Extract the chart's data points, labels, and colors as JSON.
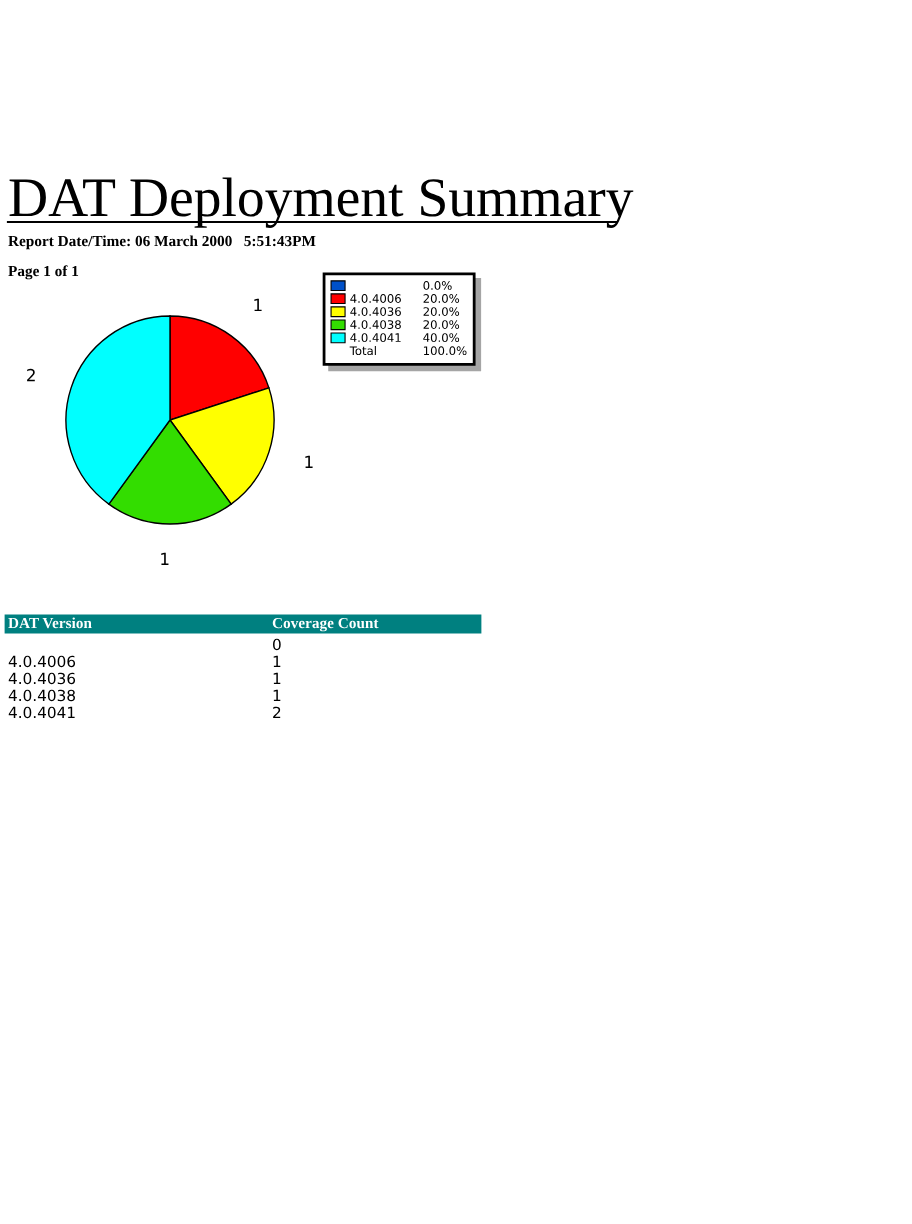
{
  "chart_data": {
    "type": "pie",
    "title": "DAT Deployment Summary",
    "subtitle": "Report Date/Time: 06 March 2000   5:51:43PM",
    "categories": [
      null,
      "4.0.4006",
      "4.0.4036",
      "4.0.4038",
      "4.0.4041"
    ],
    "values": [
      0,
      1,
      1,
      1,
      2
    ],
    "colors": [
      "#0050c8",
      "#ff0000",
      "#ffff00",
      "#33dd00",
      "#00ffff"
    ],
    "data_labels": true,
    "legend": "top right",
    "annotations": [
      "Page 1 of 1",
      "0.0%",
      "20.0%",
      "20.0%",
      "20.0%",
      "40.0%",
      "Total",
      "100.0%",
      "DAT Version",
      "Coverage Count",
      "0",
      "1",
      "1",
      "1",
      "2"
    ]
  }
}
